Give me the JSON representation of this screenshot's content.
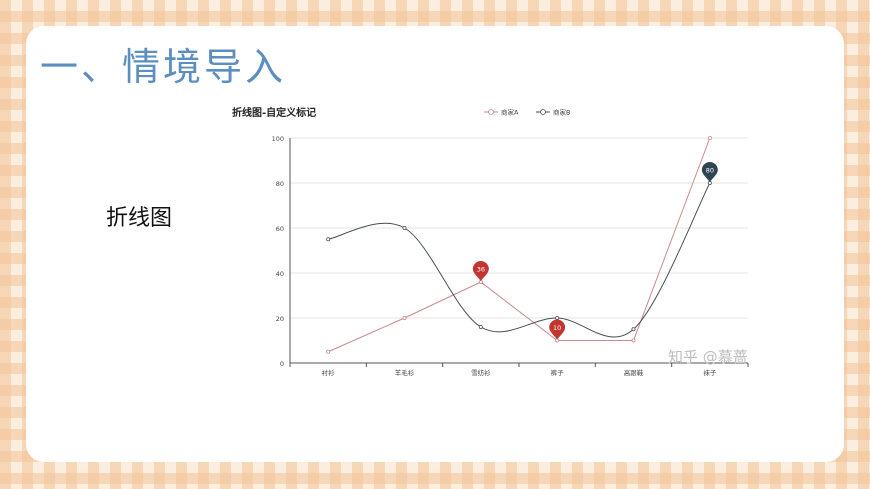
{
  "slide": {
    "title": "一、情境导入",
    "side_label": "折线图",
    "watermark": "知乎 @慕蔷"
  },
  "chart_data": {
    "type": "line",
    "title": "折线图-自定义标记",
    "categories": [
      "衬衫",
      "羊毛衫",
      "雪纺衫",
      "裤子",
      "高跟鞋",
      "袜子"
    ],
    "ylim": [
      0,
      100
    ],
    "yticks": [
      0,
      20,
      40,
      60,
      80,
      100
    ],
    "grid": true,
    "legend_position": "top-center",
    "series": [
      {
        "name": "商家A",
        "values": [
          5,
          20,
          36,
          10,
          10,
          100
        ],
        "smooth": false,
        "color": "#c98a8a",
        "markers": [
          {
            "label": "36",
            "category_index": 2,
            "value": 36,
            "color": "#c23531"
          },
          {
            "label": "10",
            "category_index": 3,
            "value": 10,
            "color": "#c23531"
          }
        ]
      },
      {
        "name": "商家B",
        "values": [
          55,
          60,
          16,
          20,
          15,
          80
        ],
        "smooth": true,
        "color": "#4a4f57",
        "markers": [
          {
            "label": "80",
            "category_index": 5,
            "value": 80,
            "color": "#2f4554"
          }
        ]
      }
    ]
  }
}
